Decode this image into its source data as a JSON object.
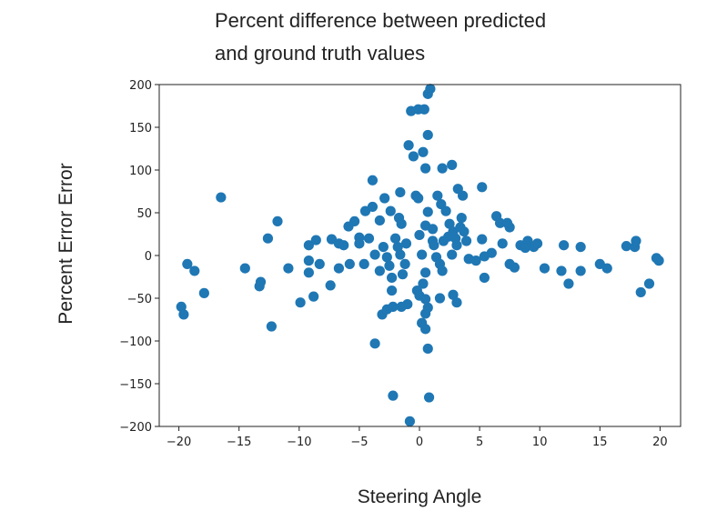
{
  "chart_data": {
    "type": "scatter",
    "title": [
      "Percent difference between predicted",
      "and ground truth values"
    ],
    "xlabel": "Steering Angle",
    "ylabel": "Percent Error Error",
    "xlim": [
      -21.7,
      21.7
    ],
    "ylim": [
      -200,
      200
    ],
    "xticks": [
      -20,
      -15,
      -10,
      -5,
      0,
      5,
      10,
      15,
      20
    ],
    "yticks": [
      200,
      150,
      100,
      50,
      0,
      -50,
      -100,
      -150,
      -200
    ],
    "xtick_labels": [
      "−20",
      "−15",
      "−10",
      "−5",
      "0",
      "5",
      "10",
      "15",
      "20"
    ],
    "ytick_labels": [
      "200",
      "150",
      "100",
      "50",
      "0",
      "−50",
      "−100",
      "−150",
      "−200"
    ],
    "grid": false,
    "color": "#1f77b4",
    "points": [
      [
        -16.5,
        68
      ],
      [
        -19.8,
        -60
      ],
      [
        -19.6,
        -69
      ],
      [
        -19.3,
        -10
      ],
      [
        -18.7,
        -18
      ],
      [
        -17.9,
        -44
      ],
      [
        -14.5,
        -15
      ],
      [
        -13.3,
        -36
      ],
      [
        -13.2,
        -31
      ],
      [
        -12.3,
        -83
      ],
      [
        -12.6,
        20
      ],
      [
        -11.8,
        40
      ],
      [
        -10.9,
        -15
      ],
      [
        -9.9,
        -55
      ],
      [
        -9.2,
        -20
      ],
      [
        -8.8,
        -48
      ],
      [
        -9.2,
        12
      ],
      [
        -8.6,
        18
      ],
      [
        -9.2,
        -6
      ],
      [
        -8.3,
        -10
      ],
      [
        -7.4,
        -35
      ],
      [
        -7.3,
        19
      ],
      [
        -6.7,
        14
      ],
      [
        -6.3,
        12
      ],
      [
        -5.9,
        34
      ],
      [
        -5.4,
        40
      ],
      [
        -5.0,
        21
      ],
      [
        -5.8,
        -10
      ],
      [
        -6.7,
        -15
      ],
      [
        -4.5,
        52
      ],
      [
        -3.9,
        57
      ],
      [
        -3.9,
        88
      ],
      [
        -4.2,
        20
      ],
      [
        -3.7,
        1
      ],
      [
        -3.3,
        41
      ],
      [
        -3.3,
        -18
      ],
      [
        -3.7,
        -103
      ],
      [
        -3.0,
        10
      ],
      [
        -2.7,
        -2
      ],
      [
        -2.5,
        -12
      ],
      [
        -2.3,
        -26
      ],
      [
        -3.1,
        -69
      ],
      [
        -2.7,
        -63
      ],
      [
        -2.2,
        -60
      ],
      [
        -2.3,
        -41
      ],
      [
        -2.2,
        -164
      ],
      [
        -1.7,
        44
      ],
      [
        -1.5,
        37
      ],
      [
        -1.6,
        1
      ],
      [
        -1.8,
        10
      ],
      [
        -1.2,
        -10
      ],
      [
        -1.4,
        -22
      ],
      [
        -1.0,
        -57
      ],
      [
        -1.5,
        -60
      ],
      [
        -2.9,
        67
      ],
      [
        -2.4,
        52
      ],
      [
        -1.6,
        74
      ],
      [
        -0.8,
        -194
      ],
      [
        -0.9,
        129
      ],
      [
        -0.5,
        116
      ],
      [
        -0.7,
        169
      ],
      [
        -0.1,
        171
      ],
      [
        -0.3,
        70
      ],
      [
        -0.1,
        67
      ],
      [
        0,
        24
      ],
      [
        0.2,
        1
      ],
      [
        -0.2,
        -41
      ],
      [
        0,
        -47
      ],
      [
        0.3,
        -33
      ],
      [
        0.5,
        -20
      ],
      [
        0.2,
        -79
      ],
      [
        0.5,
        -86
      ],
      [
        0.7,
        -109
      ],
      [
        0.8,
        -166
      ],
      [
        0.5,
        -68
      ],
      [
        0.7,
        -61
      ],
      [
        0.5,
        -51
      ],
      [
        0.9,
        195
      ],
      [
        0.7,
        189
      ],
      [
        0.4,
        171
      ],
      [
        0.7,
        141
      ],
      [
        0.3,
        121
      ],
      [
        0.5,
        102
      ],
      [
        0.7,
        51
      ],
      [
        0.5,
        35
      ],
      [
        1.1,
        17
      ],
      [
        1.1,
        31
      ],
      [
        1.2,
        12
      ],
      [
        1.4,
        -2
      ],
      [
        1.7,
        -10
      ],
      [
        1.9,
        -18
      ],
      [
        1.7,
        -50
      ],
      [
        1.9,
        102
      ],
      [
        2.7,
        106
      ],
      [
        1.5,
        70
      ],
      [
        1.8,
        60
      ],
      [
        2.2,
        52
      ],
      [
        2.5,
        37
      ],
      [
        2.8,
        28
      ],
      [
        3.0,
        20
      ],
      [
        3.1,
        12
      ],
      [
        2.7,
        1
      ],
      [
        2.4,
        22
      ],
      [
        2.0,
        17
      ],
      [
        3.2,
        78
      ],
      [
        3.6,
        70
      ],
      [
        3.5,
        44
      ],
      [
        3.7,
        28
      ],
      [
        3.4,
        33
      ],
      [
        3.9,
        17
      ],
      [
        4.1,
        -4
      ],
      [
        2.8,
        -46
      ],
      [
        3.1,
        -55
      ],
      [
        5.2,
        80
      ],
      [
        5.2,
        19
      ],
      [
        5.4,
        -1
      ],
      [
        6.0,
        3
      ],
      [
        5.4,
        -26
      ],
      [
        4.7,
        -6
      ],
      [
        6.4,
        46
      ],
      [
        6.7,
        38
      ],
      [
        6.9,
        14
      ],
      [
        7.5,
        33
      ],
      [
        7.5,
        -10
      ],
      [
        7.9,
        -14
      ],
      [
        8.4,
        12
      ],
      [
        9.0,
        17
      ],
      [
        9.5,
        10
      ],
      [
        9.8,
        14
      ],
      [
        10.4,
        -15
      ],
      [
        12.0,
        12
      ],
      [
        12.4,
        -33
      ],
      [
        13.4,
        10
      ],
      [
        13.4,
        -18
      ],
      [
        15.0,
        -10
      ],
      [
        15.6,
        -15
      ],
      [
        17.2,
        11
      ],
      [
        17.9,
        10
      ],
      [
        18.0,
        17
      ],
      [
        18.4,
        -43
      ],
      [
        19.1,
        -33
      ],
      [
        19.7,
        -3
      ],
      [
        19.9,
        -6
      ],
      [
        11.8,
        -18
      ],
      [
        7.3,
        38
      ],
      [
        8.8,
        9
      ],
      [
        -5.0,
        14
      ],
      [
        -4.6,
        -10
      ],
      [
        -2.0,
        20
      ],
      [
        -1.1,
        14
      ]
    ]
  }
}
